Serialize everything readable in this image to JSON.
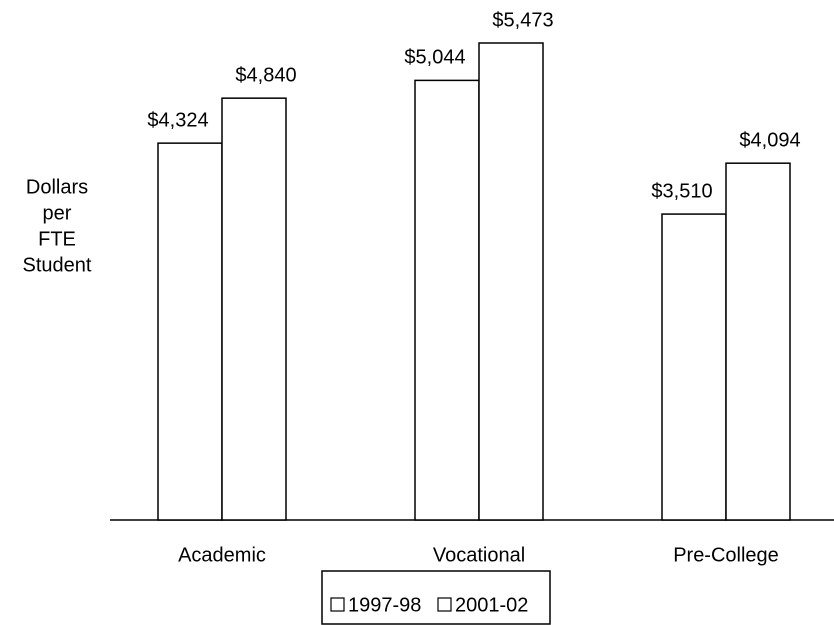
{
  "chart_data": {
    "type": "bar",
    "y_label_lines": [
      "Dollars",
      "per",
      "FTE",
      "Student"
    ],
    "categories": [
      "Academic",
      "Vocational",
      "Pre-College"
    ],
    "series": [
      {
        "name": "1997-98",
        "color": "#ffffff",
        "values": [
          4324,
          5044,
          3510
        ],
        "value_labels": [
          "$4,324",
          "$5,044",
          "$3,510"
        ]
      },
      {
        "name": "2001-02",
        "color": "#ffffff",
        "values": [
          4840,
          5473,
          4094
        ],
        "value_labels": [
          "$4,840",
          "$5,473",
          "$4,094"
        ]
      }
    ],
    "legend": "bottom"
  }
}
